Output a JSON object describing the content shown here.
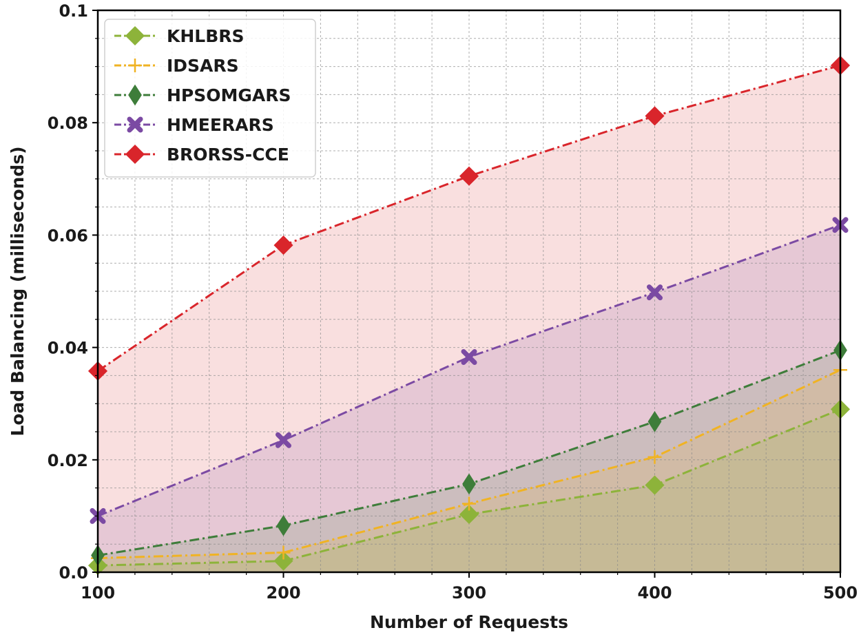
{
  "chart_data": {
    "type": "line",
    "title": "",
    "xlabel": "Number of Requests",
    "ylabel": "Load Balancing (milliseconds)",
    "x": [
      100,
      200,
      300,
      400,
      500
    ],
    "xlim": [
      100,
      500
    ],
    "ylim": [
      0.0,
      0.1
    ],
    "xticks": [
      100,
      200,
      300,
      400,
      500
    ],
    "xtick_labels": [
      "100",
      "200",
      "300",
      "400",
      "500"
    ],
    "yticks": [
      0.0,
      0.02,
      0.04,
      0.06,
      0.08,
      0.1
    ],
    "ytick_labels": [
      "0.0",
      "0.02",
      "0.04",
      "0.06",
      "0.08",
      "0.1"
    ],
    "grid": true,
    "filled_area": true,
    "legend_position": "top-left",
    "series": [
      {
        "name": "KHLBRS",
        "color": "#8db33a",
        "marker": "diamond",
        "line_style": "dash-dot",
        "values": [
          0.0012,
          0.002,
          0.0103,
          0.0155,
          0.029
        ]
      },
      {
        "name": "IDSARS",
        "color": "#f0b323",
        "marker": "plus",
        "line_style": "dash-dot",
        "values": [
          0.0025,
          0.0035,
          0.0122,
          0.0205,
          0.036
        ]
      },
      {
        "name": "HPSOMGARS",
        "color": "#3e7d3a",
        "marker": "thin-diamond",
        "line_style": "dash-dot",
        "values": [
          0.003,
          0.0083,
          0.0157,
          0.0268,
          0.0395
        ]
      },
      {
        "name": "HMEERARS",
        "color": "#7b4aa3",
        "marker": "x",
        "line_style": "dash-dot",
        "values": [
          0.01,
          0.0235,
          0.0383,
          0.0498,
          0.0618
        ]
      },
      {
        "name": "BRORSS-CCE",
        "color": "#d9252b",
        "marker": "diamond",
        "line_style": "dash-dot",
        "values": [
          0.0358,
          0.0582,
          0.0705,
          0.0812,
          0.0902
        ]
      }
    ]
  }
}
